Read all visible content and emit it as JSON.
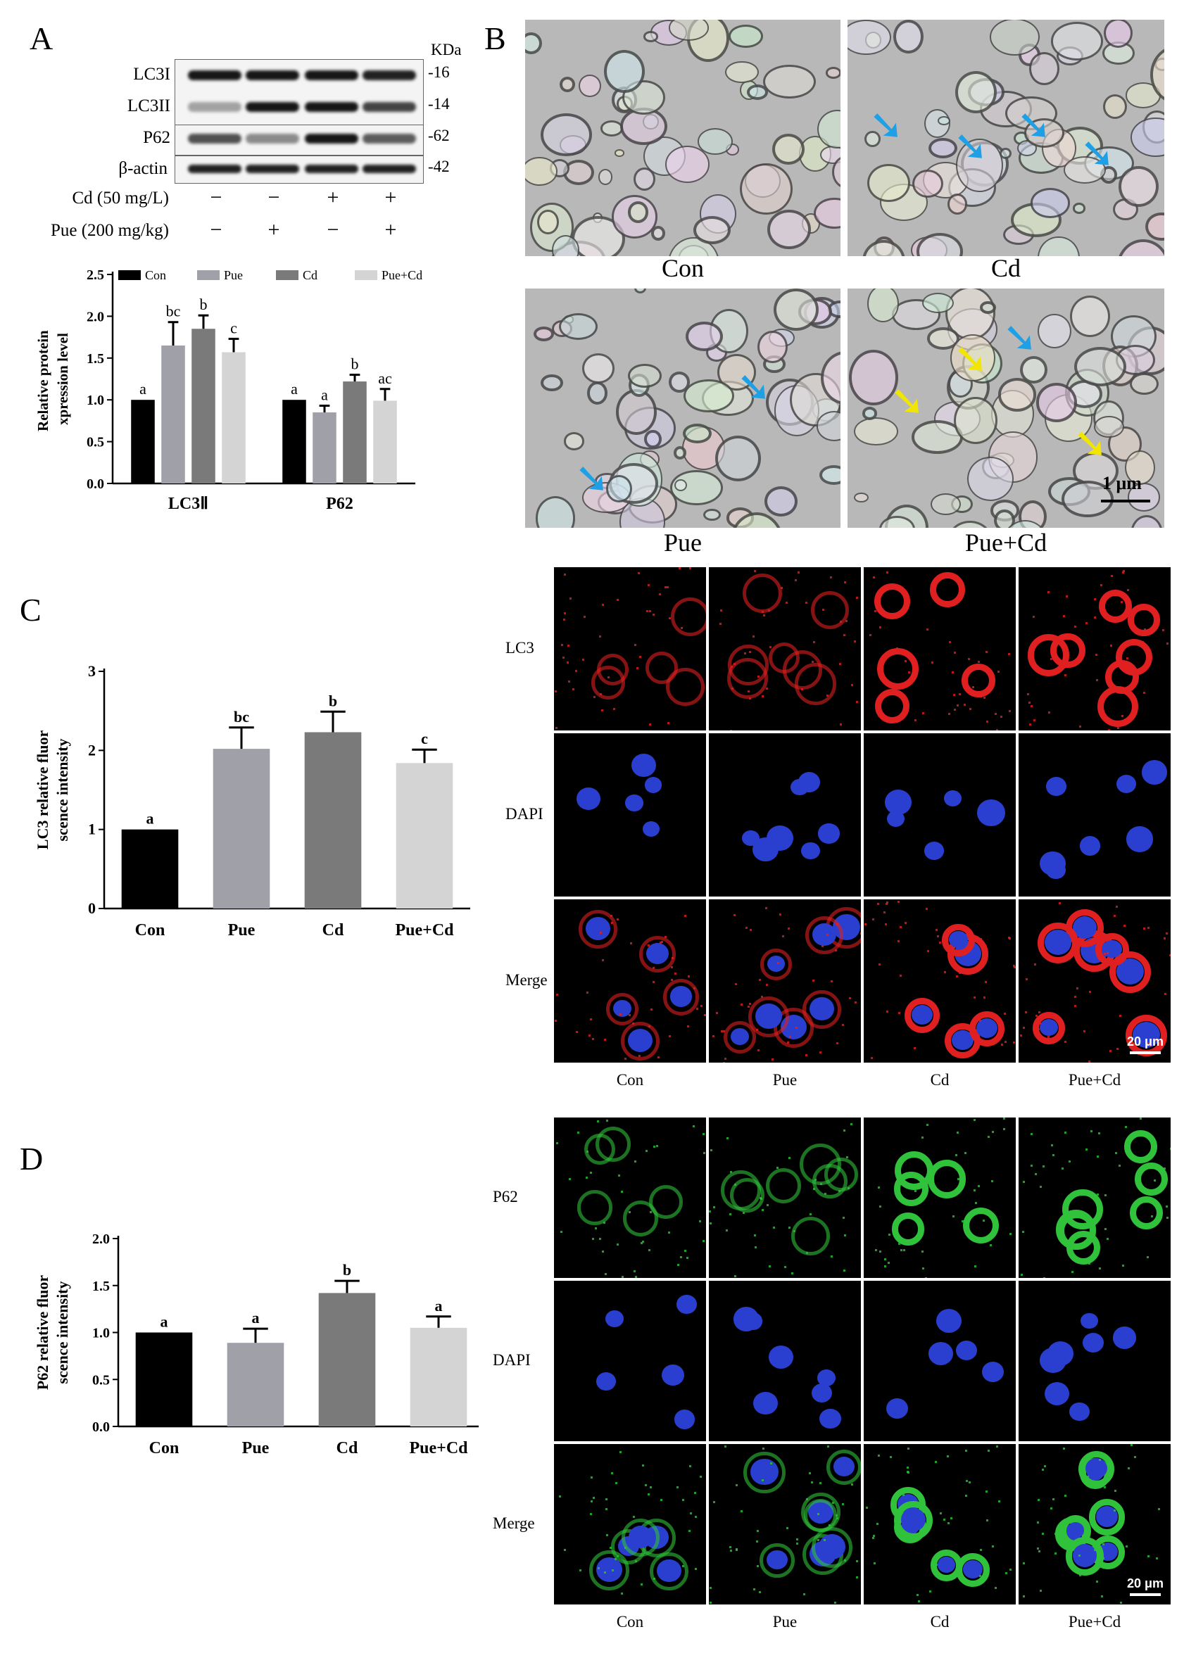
{
  "panels": {
    "a": "A",
    "b": "B",
    "c": "C",
    "d": "D"
  },
  "western_blot": {
    "unit_header": "KDa",
    "rows": [
      {
        "label": "LC3I",
        "kda": "-16"
      },
      {
        "label": "LC3II",
        "kda": "-14"
      },
      {
        "label": "P62",
        "kda": "-62"
      },
      {
        "label": "β-actin",
        "kda": "-42"
      }
    ],
    "treatments": [
      {
        "label": "Cd (50 mg/L)",
        "signs": [
          "−",
          "−",
          "+",
          "+"
        ]
      },
      {
        "label": "Pue (200 mg/kg)",
        "signs": [
          "−",
          "+",
          "−",
          "+"
        ]
      }
    ]
  },
  "em": {
    "labels": [
      "Con",
      "Cd",
      "Pue",
      "Pue+Cd"
    ],
    "scale": "1 μm"
  },
  "lc3_grid": {
    "row_labels": [
      "LC3",
      "DAPI",
      "Merge"
    ],
    "col_labels": [
      "Con",
      "Pue",
      "Cd",
      "Pue+Cd"
    ],
    "scale": "20 μm",
    "colors": {
      "stain": "#e02020",
      "nucleus": "#2a3fd0"
    }
  },
  "p62_grid": {
    "row_labels": [
      "P62",
      "DAPI",
      "Merge"
    ],
    "col_labels": [
      "Con",
      "Pue",
      "Cd",
      "Pue+Cd"
    ],
    "scale": "20 μm",
    "colors": {
      "stain": "#2fc23a",
      "nucleus": "#2a3fd0"
    }
  },
  "chart_data": [
    {
      "id": "A",
      "type": "bar",
      "ylabel": "Relative protein expression level",
      "ylim": [
        0,
        2.5
      ],
      "yticks": [
        "0.0",
        "0.5",
        "1.0",
        "1.5",
        "2.0",
        "2.5"
      ],
      "categories": [
        "LC3Ⅱ",
        "P62"
      ],
      "legend_position": "top",
      "series": [
        {
          "name": "Con",
          "color": "#000000",
          "values": [
            1.0,
            1.0
          ],
          "err": [
            0.0,
            0.0
          ],
          "letters": [
            "a",
            "a"
          ]
        },
        {
          "name": "Pue",
          "color": "#a0a0a8",
          "values": [
            1.65,
            0.85
          ],
          "err": [
            0.28,
            0.08
          ],
          "letters": [
            "bc",
            "a"
          ]
        },
        {
          "name": "Cd",
          "color": "#7a7a7a",
          "values": [
            1.85,
            1.22
          ],
          "err": [
            0.16,
            0.08
          ],
          "letters": [
            "b",
            "b"
          ]
        },
        {
          "name": "Pue+Cd",
          "color": "#d4d4d4",
          "values": [
            1.57,
            0.99
          ],
          "err": [
            0.16,
            0.14
          ],
          "letters": [
            "c",
            "ac"
          ]
        }
      ]
    },
    {
      "id": "C",
      "type": "bar",
      "ylabel": "LC3 relative fluorescence intensity",
      "ylim": [
        0,
        3
      ],
      "yticks": [
        "0",
        "1",
        "2",
        "3"
      ],
      "categories": [
        "Con",
        "Pue",
        "Cd",
        "Pue+Cd"
      ],
      "colors": [
        "#000000",
        "#a0a0a8",
        "#7a7a7a",
        "#d4d4d4"
      ],
      "values": [
        1.0,
        2.02,
        2.23,
        1.84
      ],
      "err": [
        0.0,
        0.27,
        0.26,
        0.17
      ],
      "letters": [
        "a",
        "bc",
        "b",
        "c"
      ]
    },
    {
      "id": "D",
      "type": "bar",
      "ylabel": "P62 relative fluorescence intensity",
      "ylim": [
        0,
        2.0
      ],
      "yticks": [
        "0.0",
        "0.5",
        "1.0",
        "1.5",
        "2.0"
      ],
      "categories": [
        "Con",
        "Pue",
        "Cd",
        "Pue+Cd"
      ],
      "colors": [
        "#000000",
        "#a0a0a8",
        "#7a7a7a",
        "#d4d4d4"
      ],
      "values": [
        1.0,
        0.89,
        1.42,
        1.05
      ],
      "err": [
        0.0,
        0.15,
        0.13,
        0.12
      ],
      "letters": [
        "a",
        "a",
        "b",
        "a"
      ]
    }
  ]
}
